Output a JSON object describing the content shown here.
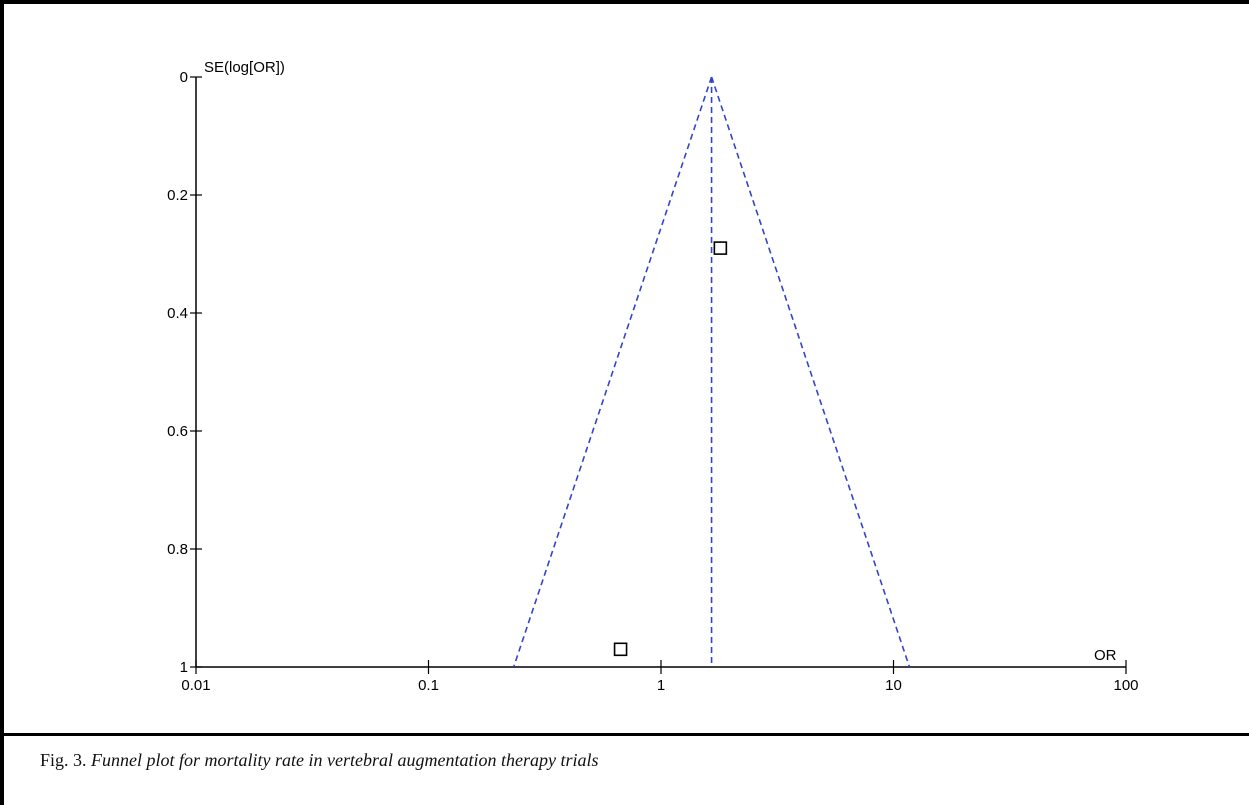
{
  "chart_data": {
    "type": "scatter",
    "subtype": "funnel",
    "xlabel": "OR",
    "ylabel": "SE(log[OR])",
    "x_scale": "log",
    "x_ticks": [
      0.01,
      0.1,
      1,
      10,
      100
    ],
    "x_tick_labels": [
      "0.01",
      "0.1",
      "1",
      "10",
      "100"
    ],
    "xlim": [
      0.01,
      100
    ],
    "y_ticks": [
      0,
      0.2,
      0.4,
      0.6,
      0.8,
      1
    ],
    "y_tick_labels": [
      "0",
      "0.2",
      "0.4",
      "0.6",
      "0.8",
      "1"
    ],
    "ylim": [
      0,
      1
    ],
    "y_inverted": true,
    "pooled_or": 1.65,
    "funnel_bottom_se": 1.0,
    "funnel_color": "#3344cc",
    "points": [
      {
        "x": 1.8,
        "y": 0.29
      },
      {
        "x": 0.67,
        "y": 0.97
      }
    ]
  },
  "caption": {
    "label": "Fig. 3.",
    "text": "Funnel plot for mortality rate in vertebral augmentation therapy trials"
  }
}
